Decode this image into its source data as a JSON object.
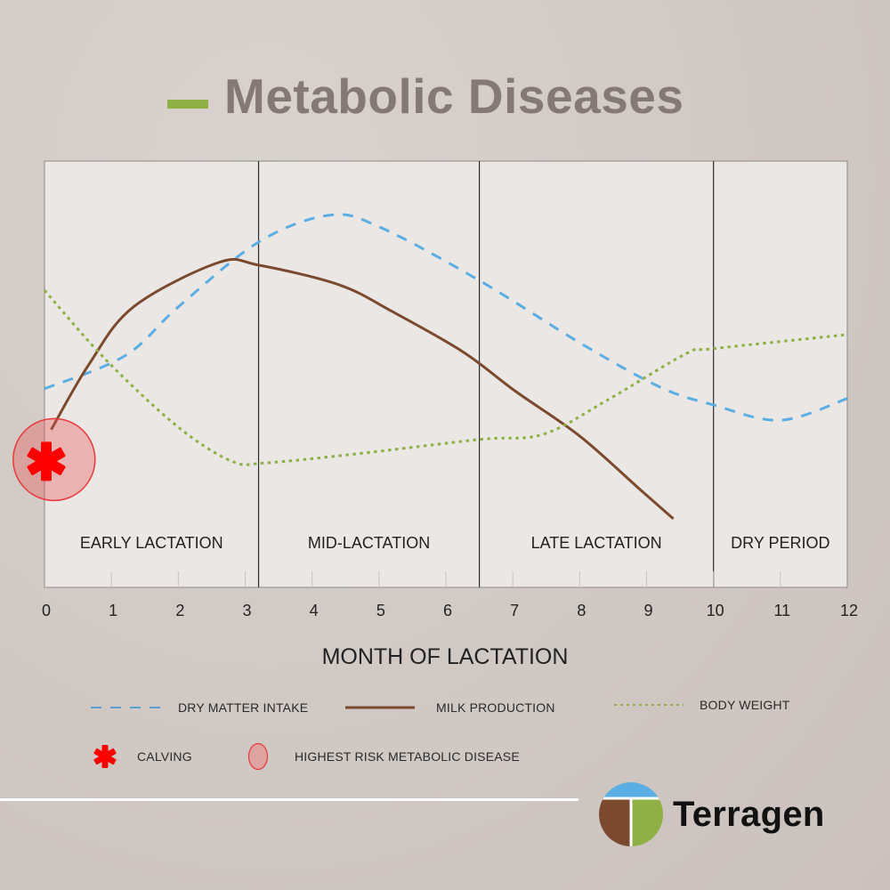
{
  "header": {
    "title": "Metabolic Diseases",
    "accent_color": "#8fb044"
  },
  "chart_data": {
    "type": "line",
    "title": "Metabolic Diseases",
    "xlabel": "MONTH OF LACTATION",
    "ylabel": "",
    "xlim": [
      0,
      12
    ],
    "ylim": [
      0,
      100
    ],
    "x_ticks": [
      "0",
      "1",
      "2",
      "3",
      "4",
      "5",
      "6",
      "7",
      "8",
      "9",
      "10",
      "11",
      "12"
    ],
    "y_axis_visible": false,
    "grid": false,
    "phases": [
      {
        "label": "EARLY LACTATION",
        "start": 0,
        "end": 3.2
      },
      {
        "label": "MID-LACTATION",
        "start": 3.2,
        "end": 6.5
      },
      {
        "label": "LATE LACTATION",
        "start": 6.5,
        "end": 10
      },
      {
        "label": "DRY PERIOD",
        "start": 10,
        "end": 12
      }
    ],
    "series": [
      {
        "name": "DRY MATTER INTAKE",
        "style": "dashed",
        "color": "#5aaee3",
        "x": [
          0,
          1.2,
          2,
          3.2,
          4.25,
          5,
          6.5,
          8,
          9.2,
          10,
          11,
          12
        ],
        "y": [
          46.6,
          54.3,
          65.8,
          81,
          87.3,
          84.6,
          72,
          57.4,
          47,
          42.8,
          39.2,
          44.3
        ]
      },
      {
        "name": "MILK PRODUCTION",
        "style": "solid",
        "color": "#7b4a2e",
        "x": [
          0.1,
          0.66,
          1.33,
          2.6,
          3.2,
          4.4,
          5.2,
          6.25,
          7.05,
          8,
          8.9,
          9.4
        ],
        "y": [
          37,
          52.2,
          65.8,
          76.2,
          75.6,
          71,
          64.7,
          55.3,
          45.9,
          35.5,
          23,
          16.1
        ]
      },
      {
        "name": "BODY WEIGHT",
        "style": "dotted",
        "color": "#8fb044",
        "x": [
          0,
          0.93,
          2,
          2.8,
          3.3,
          4.65,
          6.5,
          7.45,
          8.4,
          9.6,
          10,
          12
        ],
        "y": [
          69.7,
          53.2,
          37.6,
          29.6,
          29.2,
          31.3,
          34.7,
          35.9,
          43.8,
          54.9,
          56,
          59.3
        ]
      }
    ],
    "annotations": [
      {
        "type": "calving",
        "label": "CALVING",
        "x": 0,
        "y": 35,
        "color": "#ff0000"
      },
      {
        "type": "highest-risk",
        "label": "HIGHEST RISK METABOLIC DISEASE",
        "x": 0.15,
        "y": 35,
        "color": "#e8393a"
      }
    ],
    "legend": {
      "placement": "bottom",
      "entries": [
        "DRY MATTER INTAKE",
        "MILK PRODUCTION",
        "BODY WEIGHT",
        "CALVING",
        "HIGHEST RISK METABOLIC DISEASE"
      ]
    }
  },
  "legend": {
    "dmi": "DRY MATTER INTAKE",
    "milk": "MILK PRODUCTION",
    "bw": "BODY WEIGHT",
    "calving": "CALVING",
    "risk": "HIGHEST RISK METABOLIC DISEASE"
  },
  "footer": {
    "brand": "Terragen",
    "logo_colors": {
      "sky": "#5aaee3",
      "soil": "#7b4a2e",
      "grass": "#8fb044"
    }
  }
}
